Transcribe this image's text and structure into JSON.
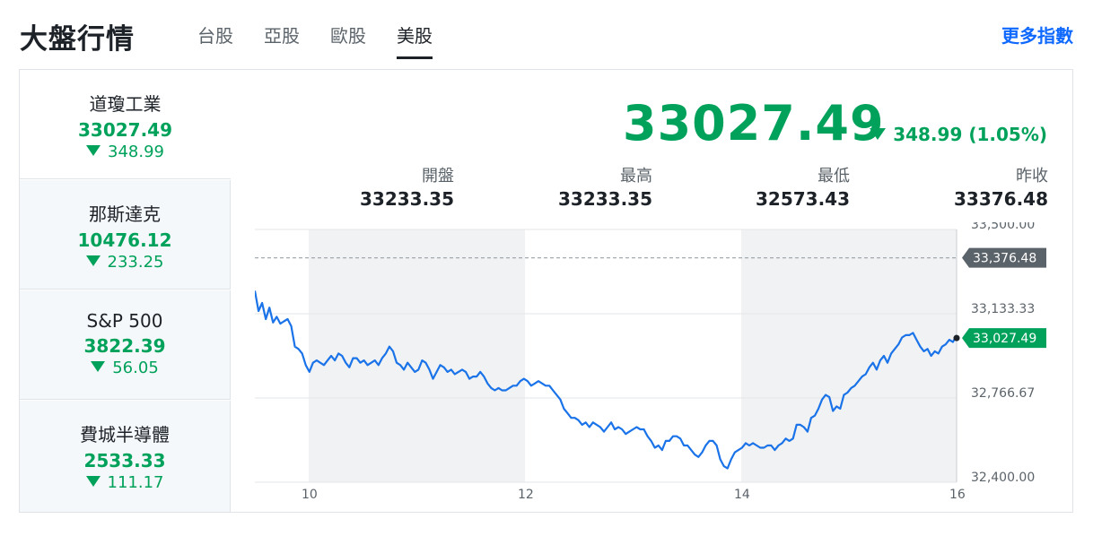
{
  "header": {
    "title": "大盤行情",
    "tabs": [
      {
        "label": "台股"
      },
      {
        "label": "亞股"
      },
      {
        "label": "歐股"
      },
      {
        "label": "美股"
      }
    ],
    "active_tab": "美股",
    "more_link": "更多指數"
  },
  "sidebar": {
    "items": [
      {
        "name": "道瓊工業",
        "value": "33027.49",
        "change": "348.99",
        "direction": "down"
      },
      {
        "name": "那斯達克",
        "value": "10476.12",
        "change": "233.25",
        "direction": "down"
      },
      {
        "name": "S&P 500",
        "value": "3822.39",
        "change": "56.05",
        "direction": "down"
      },
      {
        "name": "費城半導體",
        "value": "2533.33",
        "change": "111.17",
        "direction": "down"
      }
    ]
  },
  "main": {
    "price": "33027.49",
    "change": "348.99 (1.05%)",
    "direction": "down",
    "stats": [
      {
        "label": "開盤",
        "value": "33233.35"
      },
      {
        "label": "最高",
        "value": "33233.35"
      },
      {
        "label": "最低",
        "value": "32573.43"
      },
      {
        "label": "昨收",
        "value": "33376.48"
      }
    ]
  },
  "colors": {
    "down": "#00a25b",
    "line": "#1a73e8",
    "link": "#0f69ff",
    "prev_close_badge": "#5b636a",
    "shade": "#f1f2f3"
  },
  "chart_data": {
    "type": "line",
    "x_ticks": [
      "10",
      "12",
      "14",
      "16"
    ],
    "y_ticks": [
      "33,500.00",
      "33,133.33",
      "32,766.67",
      "32,400.00"
    ],
    "ylim": [
      32400,
      33500
    ],
    "prev_close": {
      "value": 33376.48,
      "label": "33,376.48"
    },
    "last": {
      "value": 33027.49,
      "label": "33,027.49"
    },
    "series": [
      {
        "values": [
          33233,
          33145,
          33180,
          33110,
          33160,
          33095,
          33120,
          33090,
          33100,
          33110,
          33080,
          32990,
          32980,
          32960,
          32910,
          32880,
          32920,
          32930,
          32920,
          32910,
          32930,
          32950,
          32930,
          32960,
          32950,
          32920,
          32900,
          32940,
          32940,
          32920,
          32930,
          32910,
          32920,
          32930,
          32910,
          32940,
          32960,
          32990,
          32970,
          32920,
          32910,
          32890,
          32920,
          32900,
          32880,
          32890,
          32930,
          32920,
          32890,
          32850,
          32880,
          32910,
          32900,
          32880,
          32890,
          32870,
          32880,
          32890,
          32880,
          32850,
          32860,
          32860,
          32880,
          32860,
          32830,
          32810,
          32800,
          32810,
          32800,
          32800,
          32810,
          32820,
          32820,
          32840,
          32850,
          32840,
          32820,
          32830,
          32840,
          32830,
          32820,
          32820,
          32800,
          32780,
          32760,
          32720,
          32700,
          32680,
          32680,
          32670,
          32650,
          32660,
          32640,
          32660,
          32650,
          32640,
          32620,
          32640,
          32660,
          32630,
          32640,
          32630,
          32610,
          32620,
          32630,
          32640,
          32630,
          32630,
          32600,
          32580,
          32550,
          32560,
          32540,
          32580,
          32580,
          32600,
          32600,
          32590,
          32560,
          32560,
          32540,
          32520,
          32510,
          32530,
          32560,
          32580,
          32580,
          32560,
          32500,
          32470,
          32460,
          32500,
          32530,
          32540,
          32550,
          32570,
          32560,
          32570,
          32560,
          32550,
          32550,
          32560,
          32560,
          32540,
          32560,
          32570,
          32590,
          32580,
          32590,
          32650,
          32650,
          32640,
          32620,
          32680,
          32690,
          32720,
          32760,
          32780,
          32770,
          32710,
          32730,
          32720,
          32780,
          32790,
          32810,
          32820,
          32840,
          32860,
          32870,
          32900,
          32920,
          32890,
          32930,
          32950,
          32920,
          32960,
          32980,
          33000,
          33030,
          33040,
          33040,
          33050,
          33020,
          32990,
          32970,
          32980,
          32950,
          32970,
          32960,
          32990,
          33000,
          33020,
          33010,
          33040
        ]
      }
    ],
    "shaded_bands": [
      [
        "10",
        "12"
      ],
      [
        "14",
        "16"
      ]
    ],
    "grid": true
  }
}
